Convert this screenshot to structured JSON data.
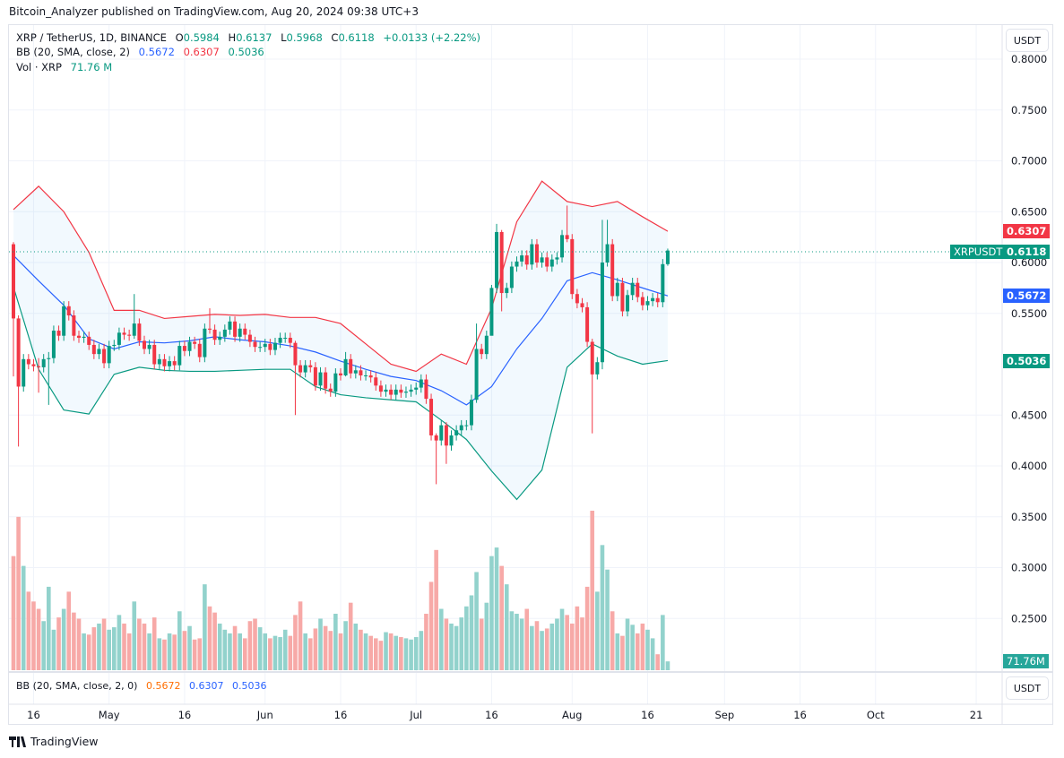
{
  "header": {
    "published": "Bitcoin_Analyzer published on TradingView.com, Aug 20, 2024 09:38 UTC+3"
  },
  "legend": {
    "symbol": "XRP / TetherUS, 1D, BINANCE",
    "o_label": "O",
    "o": "0.5984",
    "h_label": "H",
    "h": "0.6137",
    "l_label": "L",
    "l": "0.5968",
    "c_label": "C",
    "c": "0.6118",
    "change": "+0.0133 (+2.22%)",
    "bb_label": "BB (20, SMA, close, 2)",
    "bb_basis": "0.5672",
    "bb_upper": "0.6307",
    "bb_lower": "0.5036",
    "vol_label": "Vol · XRP",
    "vol": "71.76 M"
  },
  "bb_pane": {
    "label": "BB (20, SMA, close, 2, 0)",
    "basis": "0.5672",
    "upper": "0.6307",
    "lower": "0.5036"
  },
  "axis": {
    "currency": "USDT",
    "price_ticks": [
      "0.8000",
      "0.7500",
      "0.7000",
      "0.6500",
      "0.6000",
      "0.5500",
      "0.4500",
      "0.4000",
      "0.3500",
      "0.3000",
      "0.2500"
    ],
    "time_ticks": [
      "16",
      "May",
      "16",
      "Jun",
      "16",
      "Jul",
      "16",
      "Aug",
      "16",
      "Sep",
      "16",
      "Oct",
      "21"
    ]
  },
  "tags": {
    "upper": "0.6307",
    "symbol": "XRPUSDT",
    "last": "0.6118",
    "basis": "0.5672",
    "lower": "0.5036",
    "volume": "71.76M"
  },
  "colors": {
    "up": "#089981",
    "down": "#F23645",
    "basis": "#2962FF",
    "vol_up": "#92D2CC",
    "vol_down": "#F7A9A7",
    "band_fill": "#2196F3"
  },
  "footer": {
    "brand": "TradingView"
  },
  "chart_data": {
    "type": "candlestick",
    "interval": "1D",
    "start_date": "2024-04-12",
    "end_date": "2024-08-20",
    "ylim": [
      0.36,
      0.82
    ],
    "first_open": 0.618,
    "close": [
      0.545,
      0.478,
      0.505,
      0.5,
      0.498,
      0.497,
      0.505,
      0.506,
      0.533,
      0.528,
      0.557,
      0.548,
      0.528,
      0.526,
      0.527,
      0.519,
      0.51,
      0.515,
      0.501,
      0.518,
      0.519,
      0.531,
      0.529,
      0.528,
      0.54,
      0.523,
      0.515,
      0.519,
      0.5,
      0.505,
      0.498,
      0.503,
      0.499,
      0.518,
      0.513,
      0.522,
      0.52,
      0.507,
      0.535,
      0.534,
      0.524,
      0.527,
      0.534,
      0.542,
      0.527,
      0.535,
      0.529,
      0.522,
      0.517,
      0.517,
      0.52,
      0.514,
      0.521,
      0.526,
      0.526,
      0.521,
      0.499,
      0.492,
      0.499,
      0.497,
      0.479,
      0.492,
      0.476,
      0.473,
      0.491,
      0.489,
      0.505,
      0.491,
      0.494,
      0.489,
      0.489,
      0.487,
      0.479,
      0.473,
      0.475,
      0.47,
      0.475,
      0.472,
      0.473,
      0.475,
      0.477,
      0.485,
      0.466,
      0.43,
      0.425,
      0.44,
      0.42,
      0.43,
      0.435,
      0.44,
      0.44,
      0.465,
      0.515,
      0.51,
      0.528,
      0.575,
      0.63,
      0.57,
      0.575,
      0.596,
      0.601,
      0.607,
      0.598,
      0.618,
      0.6,
      0.605,
      0.596,
      0.603,
      0.605,
      0.627,
      0.623,
      0.569,
      0.56,
      0.556,
      0.522,
      0.49,
      0.502,
      0.6,
      0.618,
      0.567,
      0.58,
      0.552,
      0.568,
      0.58,
      0.566,
      0.558,
      0.562,
      0.565,
      0.561,
      0.5984,
      0.6118
    ],
    "notable_wicks": {
      "2024-04-12": [
        0.62,
        0.488
      ],
      "2024-04-13": [
        0.548,
        0.419
      ],
      "2024-04-17": [
        0.506,
        0.472
      ],
      "2024-04-19": [
        0.512,
        0.46
      ],
      "2024-05-06": [
        0.569,
        0.525
      ],
      "2024-05-21": [
        0.555,
        0.53
      ],
      "2024-06-07": [
        0.523,
        0.45
      ],
      "2024-06-17": [
        0.512,
        0.488
      ],
      "2024-07-05": [
        0.432,
        0.382
      ],
      "2024-07-07": [
        0.443,
        0.402
      ],
      "2024-07-13": [
        0.54,
        0.462
      ],
      "2024-07-16": [
        0.578,
        0.545
      ],
      "2024-07-17": [
        0.638,
        0.57
      ],
      "2024-07-18": [
        0.632,
        0.552
      ],
      "2024-07-31": [
        0.656,
        0.62
      ],
      "2024-08-05": [
        0.525,
        0.432
      ],
      "2024-08-07": [
        0.642,
        0.495
      ],
      "2024-08-08": [
        0.642,
        0.596
      ],
      "2024-08-20": [
        0.6137,
        0.5968
      ]
    },
    "volume_millions": [
      930,
      1250,
      850,
      640,
      560,
      500,
      400,
      680,
      330,
      430,
      500,
      640,
      470,
      420,
      300,
      290,
      350,
      380,
      420,
      330,
      350,
      450,
      380,
      300,
      560,
      420,
      380,
      300,
      430,
      260,
      250,
      300,
      290,
      480,
      320,
      360,
      250,
      260,
      700,
      520,
      470,
      380,
      330,
      300,
      360,
      300,
      260,
      400,
      420,
      350,
      300,
      260,
      280,
      270,
      330,
      280,
      450,
      560,
      300,
      260,
      340,
      420,
      360,
      320,
      460,
      300,
      400,
      550,
      380,
      330,
      300,
      280,
      260,
      240,
      310,
      300,
      280,
      270,
      260,
      250,
      270,
      320,
      460,
      720,
      980,
      500,
      420,
      380,
      360,
      430,
      520,
      610,
      800,
      420,
      550,
      930,
      1000,
      850,
      700,
      480,
      460,
      420,
      500,
      360,
      400,
      320,
      340,
      380,
      420,
      500,
      450,
      380,
      520,
      430,
      680,
      1300,
      640,
      1020,
      820,
      480,
      300,
      280,
      420,
      370,
      300,
      380,
      330,
      260,
      130,
      450,
      71.76
    ],
    "bollinger": {
      "sample_every_days": 5,
      "upper": [
        0.652,
        0.675,
        0.65,
        0.61,
        0.553,
        0.553,
        0.545,
        0.547,
        0.549,
        0.548,
        0.549,
        0.546,
        0.546,
        0.54,
        0.52,
        0.5,
        0.493,
        0.51,
        0.5,
        0.555,
        0.64,
        0.68,
        0.66,
        0.655,
        0.66,
        0.645,
        0.6307
      ],
      "basis": [
        0.607,
        0.582,
        0.558,
        0.525,
        0.515,
        0.522,
        0.521,
        0.523,
        0.527,
        0.524,
        0.522,
        0.518,
        0.512,
        0.503,
        0.495,
        0.488,
        0.484,
        0.474,
        0.46,
        0.478,
        0.515,
        0.545,
        0.582,
        0.59,
        0.583,
        0.575,
        0.5672
      ],
      "lower": [
        0.576,
        0.495,
        0.455,
        0.451,
        0.49,
        0.497,
        0.494,
        0.493,
        0.493,
        0.494,
        0.495,
        0.495,
        0.478,
        0.47,
        0.467,
        0.465,
        0.463,
        0.445,
        0.426,
        0.395,
        0.367,
        0.396,
        0.497,
        0.52,
        0.508,
        0.5,
        0.5036
      ]
    }
  }
}
